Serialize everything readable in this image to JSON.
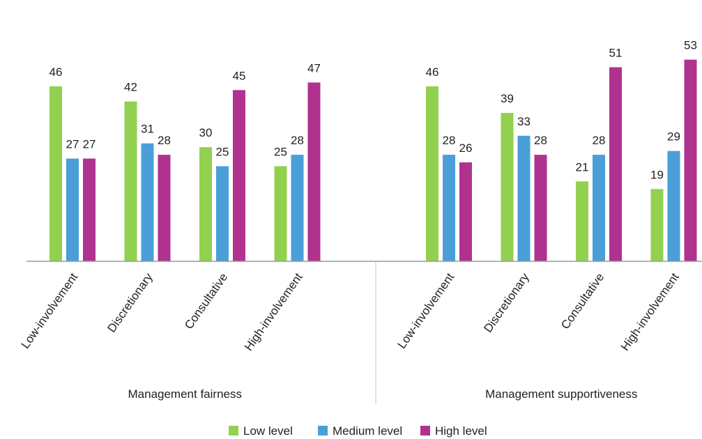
{
  "chart_data": {
    "type": "bar",
    "ylim": [
      0,
      55
    ],
    "grid": false,
    "legend_position": "bottom-center",
    "groups": [
      {
        "label": "Management fairness",
        "categories": [
          "Low-involvement",
          "Discretionary",
          "Consultative",
          "High-involvement"
        ],
        "series": [
          {
            "name": "Low level",
            "values": [
              46,
              42,
              30,
              25
            ]
          },
          {
            "name": "Medium level",
            "values": [
              27,
              31,
              25,
              28
            ]
          },
          {
            "name": "High level",
            "values": [
              27,
              28,
              45,
              47
            ]
          }
        ]
      },
      {
        "label": "Management supportiveness",
        "categories": [
          "Low-involvement",
          "Discretionary",
          "Consultative",
          "High-involvement"
        ],
        "series": [
          {
            "name": "Low level",
            "values": [
              46,
              39,
              21,
              19
            ]
          },
          {
            "name": "Medium level",
            "values": [
              28,
              33,
              28,
              29
            ]
          },
          {
            "name": "High level",
            "values": [
              26,
              28,
              51,
              53
            ]
          }
        ]
      }
    ],
    "legend": [
      "Low level",
      "Medium level",
      "High level"
    ],
    "colors": [
      "#92d050",
      "#4a9fd8",
      "#b0328f"
    ]
  }
}
